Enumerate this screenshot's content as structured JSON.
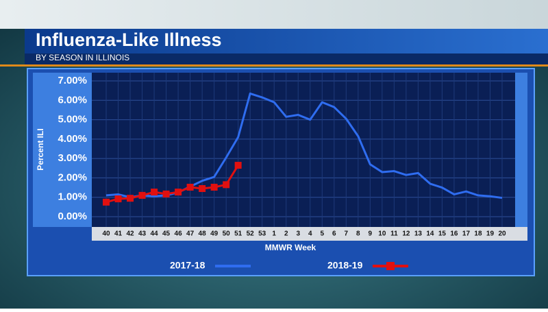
{
  "chart_data": {
    "type": "line",
    "title": "Influenza-Like Illness",
    "subtitle": "BY SEASON IN ILLINOIS",
    "x_label": "MMWR Week",
    "y_label": "Percent ILI",
    "categories": [
      "40",
      "41",
      "42",
      "43",
      "44",
      "45",
      "46",
      "47",
      "48",
      "49",
      "50",
      "51",
      "52",
      "53",
      "1",
      "2",
      "3",
      "4",
      "5",
      "6",
      "7",
      "8",
      "9",
      "10",
      "11",
      "12",
      "13",
      "14",
      "15",
      "16",
      "17",
      "18",
      "19",
      "20"
    ],
    "series": [
      {
        "name": "2017-18",
        "color": "#2f6df0",
        "marker": false,
        "values": [
          1.1,
          1.15,
          1.0,
          1.1,
          1.05,
          1.1,
          1.25,
          1.55,
          1.85,
          2.05,
          3.05,
          4.1,
          6.35,
          6.15,
          5.9,
          5.15,
          5.25,
          5.0,
          5.9,
          5.65,
          5.05,
          4.15,
          2.7,
          2.3,
          2.35,
          2.15,
          2.25,
          1.7,
          1.5,
          1.15,
          1.3,
          1.1,
          1.05,
          0.97
        ]
      },
      {
        "name": "2018-19",
        "color": "#e01010",
        "marker": true,
        "values": [
          0.75,
          0.92,
          0.95,
          1.1,
          1.27,
          1.17,
          1.27,
          1.52,
          1.45,
          1.52,
          1.65,
          2.65,
          null,
          null,
          null,
          null,
          null,
          null,
          null,
          null,
          null,
          null,
          null,
          null,
          null,
          null,
          null,
          null,
          null,
          null,
          null,
          null,
          null,
          null
        ]
      }
    ],
    "ylim": [
      0,
      7
    ],
    "yticks": [
      {
        "value": 0,
        "label": "0.00%"
      },
      {
        "value": 1,
        "label": "1.00%"
      },
      {
        "value": 2,
        "label": "2.00%"
      },
      {
        "value": 3,
        "label": "3.00%"
      },
      {
        "value": 4,
        "label": "4.00%"
      },
      {
        "value": 5,
        "label": "5.00%"
      },
      {
        "value": 6,
        "label": "6.00%"
      },
      {
        "value": 7,
        "label": "7.00%"
      }
    ],
    "grid": true
  }
}
